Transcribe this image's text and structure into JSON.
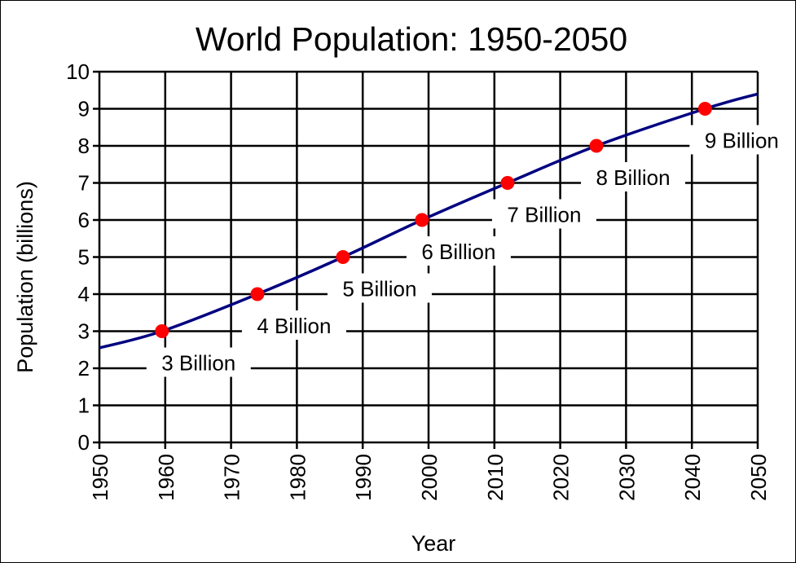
{
  "chart_data": {
    "type": "line",
    "title": "World Population: 1950-2050",
    "xlabel": "Year",
    "ylabel": "Population  (billions)",
    "xlim": [
      1950,
      2050
    ],
    "ylim": [
      0,
      10
    ],
    "x_ticks": [
      "1950",
      "1960",
      "1970",
      "1980",
      "1990",
      "2000",
      "2010",
      "2020",
      "2030",
      "2040",
      "2050"
    ],
    "y_ticks": [
      "0",
      "1",
      "2",
      "3",
      "4",
      "5",
      "6",
      "7",
      "8",
      "9",
      "10"
    ],
    "grid": true,
    "series": [
      {
        "x": [
          1950,
          1959.5,
          1974,
          1987,
          1999,
          2012,
          2025.5,
          2042,
          2050
        ],
        "y": [
          2.55,
          3,
          4,
          5,
          6,
          7,
          8,
          9,
          9.4
        ],
        "color": "#000080"
      }
    ],
    "milestones": [
      {
        "year": 1959.5,
        "value": 3,
        "label": "3 Billion"
      },
      {
        "year": 1974,
        "value": 4,
        "label": "4 Billion"
      },
      {
        "year": 1987,
        "value": 5,
        "label": "5 Billion"
      },
      {
        "year": 1999,
        "value": 6,
        "label": "6 Billion"
      },
      {
        "year": 2012,
        "value": 7,
        "label": "7 Billion"
      },
      {
        "year": 2025.5,
        "value": 8,
        "label": "8 Billion"
      },
      {
        "year": 2042,
        "value": 9,
        "label": "9 Billion"
      }
    ],
    "marker_color": "#ff0000"
  }
}
